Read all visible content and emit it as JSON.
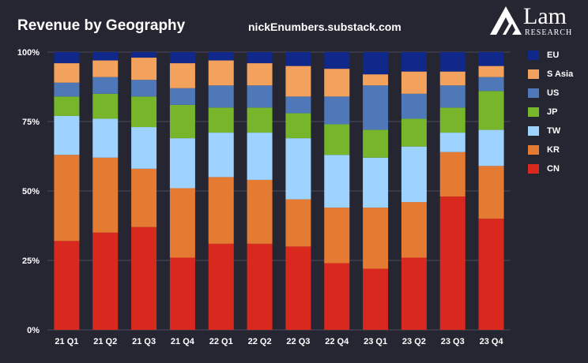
{
  "header": {
    "title": "Revenue by Geography",
    "source": "nickEnumbers.substack.com"
  },
  "logo": {
    "word": "Lam",
    "sub": "RESEARCH"
  },
  "colors": {
    "background": "#262633",
    "grid": "#4a4a58",
    "EU": "#10288a",
    "S Asia": "#f3a25d",
    "US": "#4f78b8",
    "JP": "#77b52b",
    "TW": "#9fd3ff",
    "KR": "#e57a33",
    "CN": "#d9291e"
  },
  "chart_data": {
    "type": "bar",
    "stacked": true,
    "title": "Revenue by Geography",
    "categories": [
      "21 Q1",
      "21 Q2",
      "21 Q3",
      "21 Q4",
      "22 Q1",
      "22 Q2",
      "22 Q3",
      "22 Q4",
      "23 Q1",
      "23 Q2",
      "23 Q3",
      "23 Q4"
    ],
    "series": [
      {
        "name": "CN",
        "values": [
          32,
          35,
          37,
          26,
          31,
          31,
          30,
          24,
          22,
          26,
          48,
          40
        ]
      },
      {
        "name": "KR",
        "values": [
          31,
          27,
          21,
          25,
          24,
          23,
          17,
          20,
          22,
          20,
          16,
          19
        ]
      },
      {
        "name": "TW",
        "values": [
          14,
          14,
          15,
          18,
          16,
          17,
          22,
          19,
          18,
          20,
          7,
          13
        ]
      },
      {
        "name": "JP",
        "values": [
          7,
          9,
          11,
          12,
          9,
          9,
          9,
          11,
          10,
          10,
          9,
          14
        ]
      },
      {
        "name": "US",
        "values": [
          5,
          6,
          6,
          6,
          8,
          8,
          6,
          10,
          16,
          9,
          8,
          5
        ]
      },
      {
        "name": "S Asia",
        "values": [
          7,
          6,
          8,
          9,
          9,
          8,
          11,
          10,
          4,
          8,
          5,
          4
        ]
      },
      {
        "name": "EU",
        "values": [
          4,
          3,
          2,
          4,
          3,
          4,
          5,
          6,
          8,
          7,
          7,
          5
        ]
      }
    ],
    "ylim": [
      0,
      100
    ],
    "yticks": [
      "0%",
      "25%",
      "50%",
      "75%",
      "100%"
    ],
    "grid": true,
    "legend_position": "right"
  }
}
